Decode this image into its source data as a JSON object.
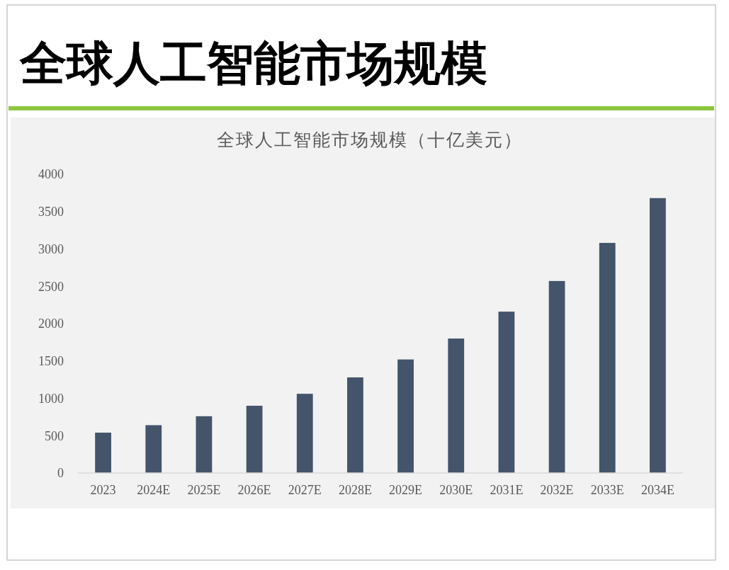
{
  "chart_data": {
    "type": "bar",
    "title": "全球人工智能市场规模",
    "subtitle": "全球人工智能市场规模（十亿美元）",
    "categories": [
      "2023",
      "2024E",
      "2025E",
      "2026E",
      "2027E",
      "2028E",
      "2029E",
      "2030E",
      "2031E",
      "2032E",
      "2033E",
      "2034E"
    ],
    "values": [
      540,
      640,
      760,
      900,
      1060,
      1280,
      1520,
      1800,
      2160,
      2570,
      3080,
      3680
    ],
    "color": "#44546a",
    "ylim": [
      0,
      4000
    ],
    "yticks": [
      0,
      500,
      1000,
      1500,
      2000,
      2500,
      3000,
      3500,
      4000
    ],
    "grid": false
  }
}
